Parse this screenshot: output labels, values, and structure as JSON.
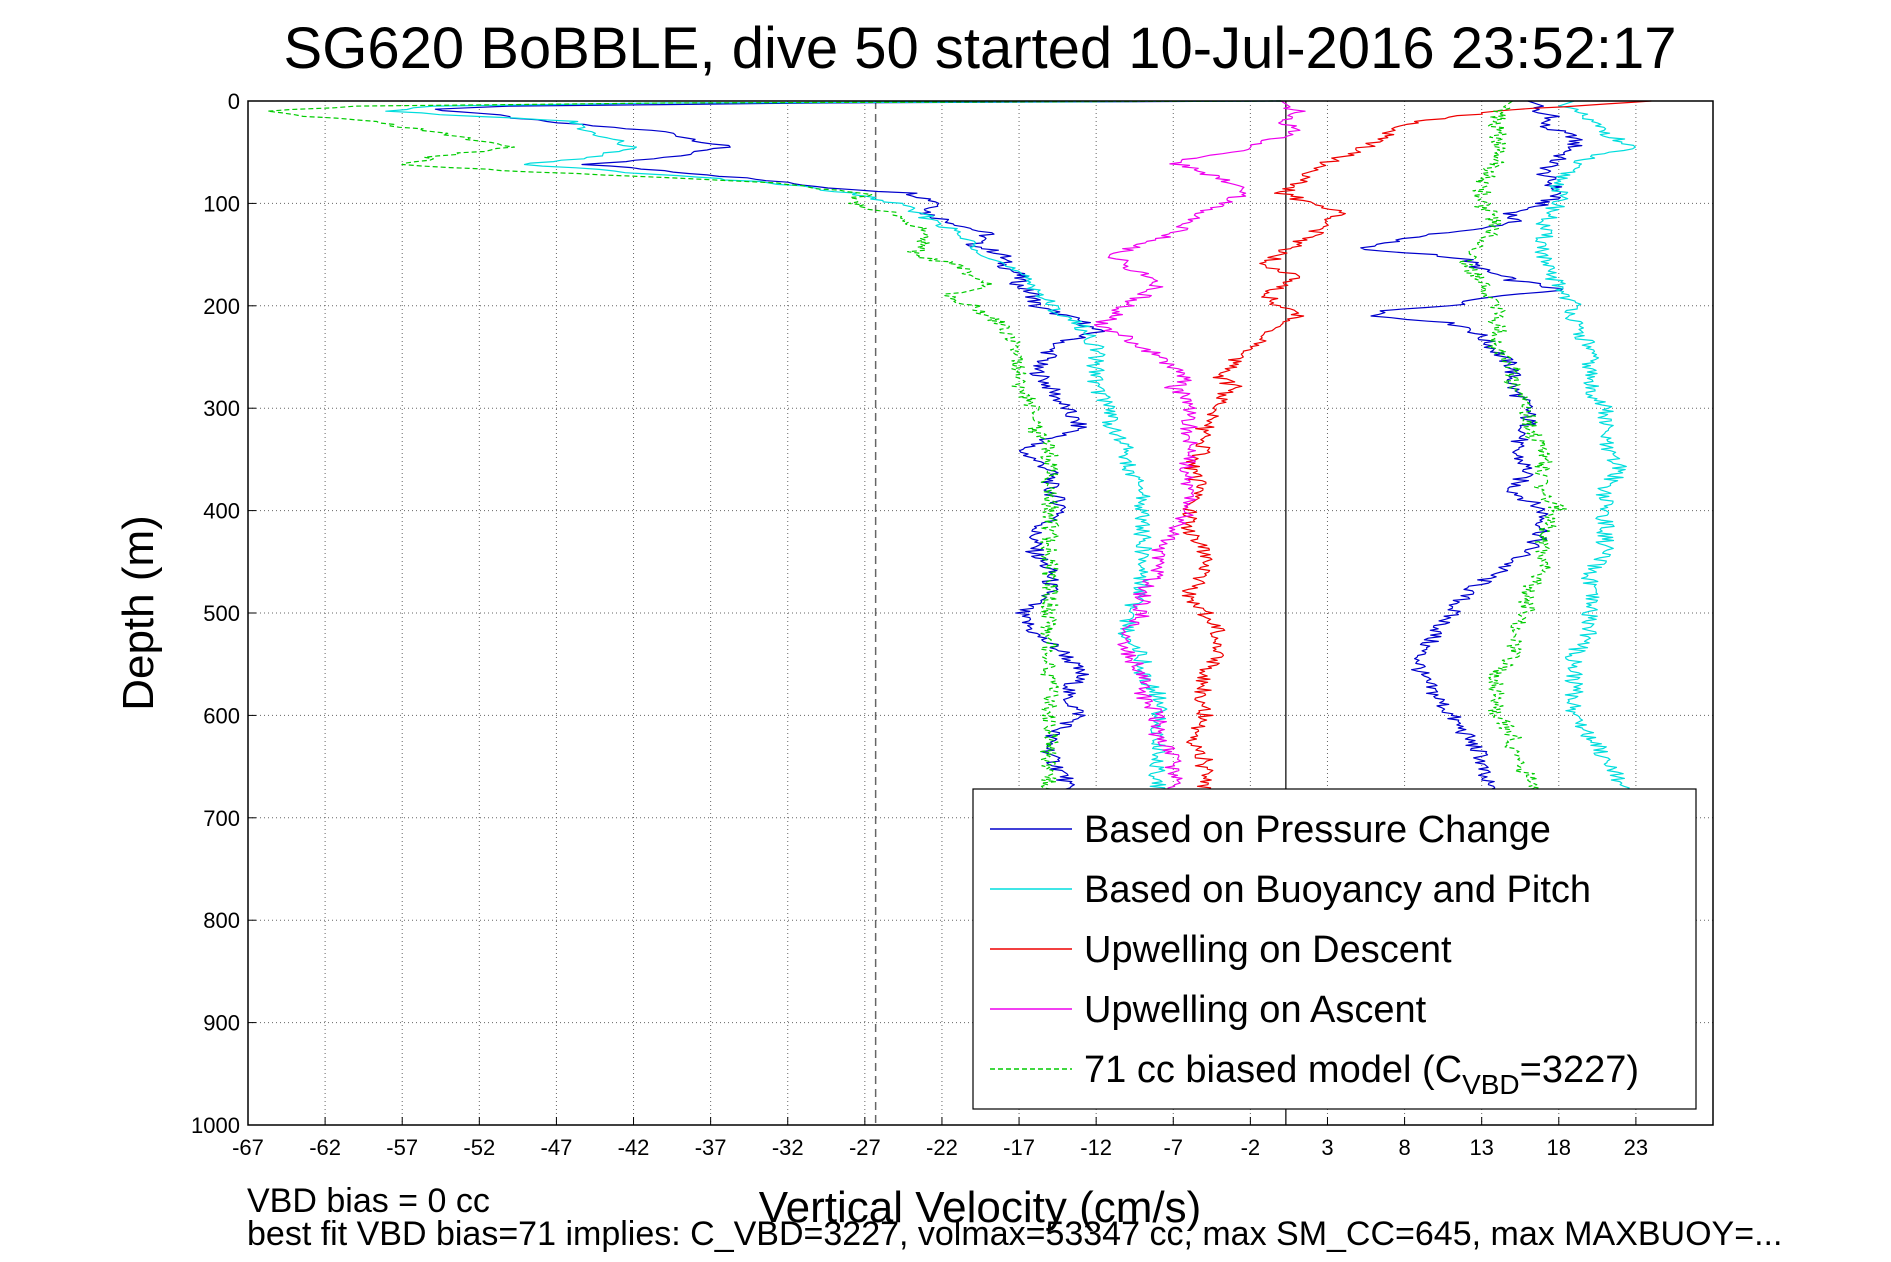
{
  "chart_data": {
    "type": "line",
    "title": "SG620 BoBBLE, dive 50 started 10-Jul-2016 23:52:17",
    "xlabel": "Vertical Velocity (cm/s)",
    "ylabel": "Depth (m)",
    "xlim": [
      -67,
      28
    ],
    "ylim": [
      1000,
      0
    ],
    "y_reversed": true,
    "grid": true,
    "xticks": [
      -67,
      -62,
      -57,
      -52,
      -47,
      -42,
      -37,
      -32,
      -27,
      -22,
      -17,
      -12,
      -7,
      -2,
      3,
      8,
      13,
      18,
      23
    ],
    "yticks": [
      0,
      100,
      200,
      300,
      400,
      500,
      600,
      700,
      800,
      900,
      1000
    ],
    "reference_lines": [
      {
        "axis": "x",
        "value": -26.3,
        "style": "dashed",
        "color": "#666666"
      },
      {
        "axis": "x",
        "value": 0.3,
        "style": "solid",
        "color": "#333333"
      }
    ],
    "legend_position": "bottom-right",
    "series": [
      {
        "name": "Based on Pressure Change",
        "color": "#0000cc",
        "style": "solid",
        "branches": [
          {
            "depth": [
              0,
              2,
              5,
              8,
              12,
              20,
              30,
              45,
              55,
              62,
              68,
              75,
              85,
              90,
              100,
              110,
              120,
              130,
              140,
              150,
              160,
              170,
              180,
              190,
              200,
              215,
              225,
              240,
              250,
              260,
              280,
              300,
              320,
              340,
              360,
              380,
              400,
              420,
              440,
              460,
              480,
              500,
              520,
              540,
              560,
              580,
              600,
              620,
              640,
              660,
              680
            ],
            "x": [
              0,
              -30,
              -50,
              -55,
              -52,
              -48,
              -40,
              -36,
              -40,
              -45,
              -40,
              -35,
              -29,
              -24,
              -22,
              -23,
              -21,
              -19,
              -20,
              -18,
              -18,
              -17,
              -17,
              -16,
              -16,
              -13,
              -12,
              -15,
              -15,
              -16,
              -15,
              -14,
              -13,
              -17,
              -15,
              -15,
              -14,
              -16,
              -16,
              -15,
              -15,
              -17,
              -16,
              -14,
              -13,
              -14,
              -13,
              -15,
              -15,
              -14,
              -14
            ]
          },
          {
            "depth": [
              0,
              5,
              10,
              15,
              20,
              25,
              35,
              45,
              55,
              70,
              90,
              100,
              110,
              120,
              130,
              140,
              145,
              150,
              155,
              165,
              175,
              180,
              185,
              190,
              200,
              205,
              210,
              215,
              220,
              230,
              245,
              260,
              280,
              300,
              320,
              340,
              360,
              380,
              400,
              420,
              440,
              460,
              480,
              500,
              520,
              540,
              560,
              580,
              600,
              620,
              640,
              660,
              680
            ],
            "x": [
              16,
              17,
              16,
              18,
              17,
              17,
              19,
              19,
              18,
              17,
              18,
              17,
              15,
              15,
              10,
              6,
              5,
              10,
              12,
              13,
              15,
              17,
              18,
              14,
              11,
              7,
              6,
              10,
              12,
              13,
              14,
              15,
              15,
              16,
              16,
              15,
              16,
              15,
              17,
              17,
              16,
              14,
              12,
              11,
              10,
              9,
              9,
              10,
              11,
              12,
              13,
              13,
              14
            ]
          }
        ]
      },
      {
        "name": "Based on Buoyancy and Pitch",
        "color": "#00dddd",
        "style": "solid",
        "branches": [
          {
            "depth": [
              0,
              2,
              5,
              10,
              15,
              20,
              30,
              45,
              55,
              62,
              70,
              80,
              90,
              100,
              120,
              140,
              160,
              180,
              200,
              220,
              240,
              260,
              280,
              300,
              320,
              340,
              360,
              380,
              400,
              420,
              440,
              460,
              480,
              500,
              520,
              540,
              560,
              580,
              600,
              620,
              640,
              660,
              680
            ],
            "x": [
              0,
              -40,
              -55,
              -58,
              -52,
              -46,
              -45,
              -42,
              -45,
              -49,
              -42,
              -33,
              -28,
              -25,
              -22,
              -20,
              -18,
              -16,
              -15,
              -13,
              -12,
              -12,
              -12,
              -11,
              -11,
              -10,
              -10,
              -9,
              -9,
              -9,
              -9,
              -9,
              -9,
              -10,
              -10,
              -9,
              -9,
              -8,
              -8,
              -8,
              -8,
              -8,
              -8
            ]
          },
          {
            "depth": [
              0,
              5,
              10,
              20,
              30,
              40,
              45,
              50,
              60,
              80,
              100,
              120,
              140,
              160,
              180,
              200,
              220,
              240,
              260,
              280,
              300,
              320,
              340,
              360,
              380,
              400,
              420,
              440,
              460,
              480,
              500,
              520,
              540,
              560,
              580,
              600,
              620,
              640,
              660,
              680
            ],
            "x": [
              19,
              18,
              19,
              20,
              21,
              22,
              23,
              21,
              19,
              18,
              18,
              17,
              17,
              17,
              18,
              19,
              19,
              20,
              20,
              20,
              21,
              21,
              21,
              22,
              21,
              21,
              21,
              21,
              20,
              20,
              20,
              20,
              19,
              19,
              19,
              19,
              20,
              21,
              22,
              22
            ]
          }
        ]
      },
      {
        "name": "Upwelling on Descent",
        "color": "#ee0000",
        "style": "solid",
        "branches": [
          {
            "depth": [
              0,
              10,
              20,
              30,
              40,
              50,
              60,
              70,
              80,
              90,
              100,
              110,
              120,
              130,
              140,
              150,
              160,
              170,
              180,
              190,
              200,
              210,
              220,
              230,
              240,
              250,
              260,
              270,
              280,
              290,
              300,
              320,
              340,
              360,
              380,
              400,
              420,
              440,
              460,
              480,
              500,
              520,
              540,
              560,
              580,
              600,
              620,
              640,
              660,
              680
            ],
            "x": [
              24,
              14,
              9,
              7,
              6,
              5,
              3,
              2,
              1,
              0,
              2,
              4,
              3,
              2,
              1,
              0,
              -1,
              1,
              0,
              -1,
              0,
              1,
              0,
              -1,
              -2,
              -3,
              -3,
              -4,
              -3,
              -4,
              -4,
              -5,
              -5,
              -6,
              -5,
              -6,
              -6,
              -5,
              -5,
              -6,
              -5,
              -4,
              -4,
              -5,
              -5,
              -5,
              -6,
              -5,
              -5,
              -5
            ]
          }
        ]
      },
      {
        "name": "Upwelling on Ascent",
        "color": "#ee00ee",
        "style": "solid",
        "branches": [
          {
            "depth": [
              0,
              10,
              20,
              30,
              40,
              50,
              60,
              70,
              80,
              90,
              100,
              110,
              120,
              130,
              140,
              150,
              160,
              170,
              180,
              190,
              200,
              210,
              220,
              230,
              240,
              250,
              260,
              270,
              280,
              290,
              300,
              320,
              340,
              360,
              380,
              400,
              420,
              440,
              460,
              480,
              500,
              520,
              540,
              560,
              580,
              600,
              620,
              640,
              660,
              680
            ],
            "x": [
              0,
              1,
              0,
              1,
              -1,
              -3,
              -7,
              -5,
              -3,
              -2,
              -4,
              -5,
              -6,
              -7,
              -9,
              -11,
              -10,
              -9,
              -8,
              -9,
              -10,
              -11,
              -12,
              -10,
              -9,
              -8,
              -7,
              -6,
              -7,
              -6,
              -6,
              -6,
              -6,
              -6,
              -6,
              -6,
              -7,
              -8,
              -8,
              -9,
              -9,
              -10,
              -10,
              -9,
              -9,
              -8,
              -8,
              -7,
              -7,
              -7
            ]
          }
        ]
      },
      {
        "name": "71 cc biased model (C_VBD=3227)",
        "color": "#00cc00",
        "style": "dashed",
        "branches": [
          {
            "depth": [
              0,
              2,
              5,
              10,
              15,
              20,
              30,
              45,
              55,
              62,
              68,
              75,
              80,
              90,
              100,
              110,
              120,
              130,
              140,
              150,
              160,
              170,
              180,
              190,
              200,
              210,
              220,
              240,
              260,
              280,
              300,
              320,
              340,
              360,
              380,
              400,
              420,
              440,
              460,
              480,
              500,
              520,
              540,
              560,
              580,
              600,
              620,
              640,
              660,
              680
            ],
            "x": [
              0,
              -40,
              -60,
              -66,
              -63,
              -59,
              -55,
              -50,
              -55,
              -57,
              -50,
              -40,
              -33,
              -27,
              -28,
              -25,
              -24,
              -23,
              -23,
              -24,
              -21,
              -20,
              -19,
              -22,
              -20,
              -19,
              -18,
              -17,
              -17,
              -17,
              -16,
              -16,
              -15,
              -15,
              -15,
              -15,
              -15,
              -15,
              -15,
              -15,
              -15,
              -15,
              -15,
              -15,
              -15,
              -15,
              -15,
              -15,
              -15,
              -15
            ]
          },
          {
            "depth": [
              0,
              10,
              20,
              40,
              60,
              80,
              100,
              120,
              140,
              160,
              180,
              200,
              220,
              240,
              260,
              280,
              300,
              320,
              340,
              360,
              380,
              400,
              420,
              440,
              460,
              480,
              500,
              520,
              540,
              560,
              580,
              600,
              620,
              640,
              660,
              680
            ],
            "x": [
              15,
              14,
              14,
              14,
              14,
              13,
              13,
              14,
              13,
              12,
              13,
              14,
              14,
              14,
              15,
              15,
              16,
              16,
              17,
              17,
              17,
              18,
              17,
              17,
              17,
              16,
              16,
              15,
              15,
              14,
              14,
              14,
              15,
              15,
              16,
              17
            ]
          }
        ]
      }
    ],
    "legend": [
      {
        "label": "Based on Pressure Change",
        "color": "#0000cc",
        "style": "solid"
      },
      {
        "label": "Based on Buoyancy and Pitch",
        "color": "#00dddd",
        "style": "solid"
      },
      {
        "label": "Upwelling on Descent",
        "color": "#ee0000",
        "style": "solid"
      },
      {
        "label": "Upwelling on Ascent",
        "color": "#ee00ee",
        "style": "solid"
      },
      {
        "label_prefix": "71 cc biased model (C",
        "label_sub": "VBD",
        "label_suffix": "=3227)",
        "color": "#00cc00",
        "style": "dashed"
      }
    ]
  },
  "footer": {
    "line1": "VBD bias = 0 cc",
    "line2": "best fit VBD bias=71 implies: C_VBD=3227, volmax=53347 cc, max SM_CC=645, max MAXBUOY=..."
  }
}
